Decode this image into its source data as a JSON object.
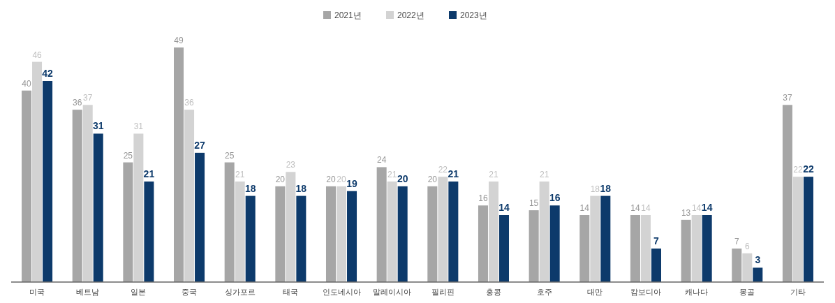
{
  "chart_data": {
    "type": "bar",
    "categories": [
      "미국",
      "베트남",
      "일본",
      "중국",
      "싱가포르",
      "태국",
      "인도네시아",
      "말레이시아",
      "필리핀",
      "홍콩",
      "호주",
      "대만",
      "캄보디아",
      "캐나다",
      "몽골",
      "기타"
    ],
    "series": [
      {
        "name": "2021년",
        "color": "#a6a6a6",
        "values": [
          40,
          36,
          25,
          49,
          25,
          20,
          20,
          24,
          20,
          16,
          15,
          14,
          14,
          13,
          7,
          37
        ]
      },
      {
        "name": "2022년",
        "color": "#d3d3d3",
        "values": [
          46,
          37,
          31,
          36,
          21,
          23,
          20,
          21,
          22,
          21,
          21,
          18,
          14,
          14,
          6,
          22
        ]
      },
      {
        "name": "2023년",
        "color": "#0d3a6b",
        "values": [
          42,
          31,
          21,
          27,
          18,
          18,
          19,
          20,
          21,
          14,
          16,
          18,
          7,
          14,
          3,
          22
        ]
      }
    ],
    "data_labels": true,
    "legend": "top",
    "tick_labels": "x",
    "grid": false
  }
}
